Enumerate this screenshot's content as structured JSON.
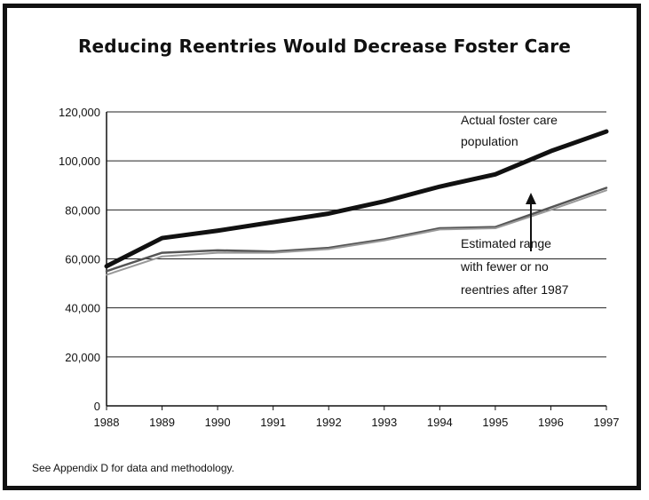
{
  "chart_data": {
    "type": "line",
    "title": "Reducing Reentries Would Decrease Foster Care",
    "xlabel": "",
    "ylabel": "",
    "x": [
      "1988",
      "1989",
      "1990",
      "1991",
      "1992",
      "1993",
      "1994",
      "1995",
      "1996",
      "1997"
    ],
    "ylim": [
      0,
      120000
    ],
    "yticks": [
      "0",
      "20,000",
      "40,000",
      "60,000",
      "80,000",
      "100,000",
      "120,000"
    ],
    "grid": true,
    "series": [
      {
        "name": "Actual foster care population",
        "color": "#111111",
        "values": [
          57000,
          68500,
          71500,
          75000,
          78500,
          83500,
          89500,
          94500,
          104000,
          112000
        ]
      },
      {
        "name": "",
        "color": "#555555",
        "values": [
          55000,
          62500,
          63500,
          63000,
          64500,
          68000,
          72500,
          73000,
          81000,
          89000
        ]
      },
      {
        "name": "",
        "color": "#999999",
        "values": [
          53500,
          61000,
          62500,
          62500,
          64000,
          67500,
          72000,
          72500,
          80000,
          88000
        ]
      }
    ],
    "annotations": {
      "actual": [
        "Actual foster care",
        "population"
      ],
      "estimated": [
        "Estimated range",
        "with fewer or no",
        "reentries after 1987"
      ]
    }
  },
  "footnote": "See Appendix D for data and methodology."
}
